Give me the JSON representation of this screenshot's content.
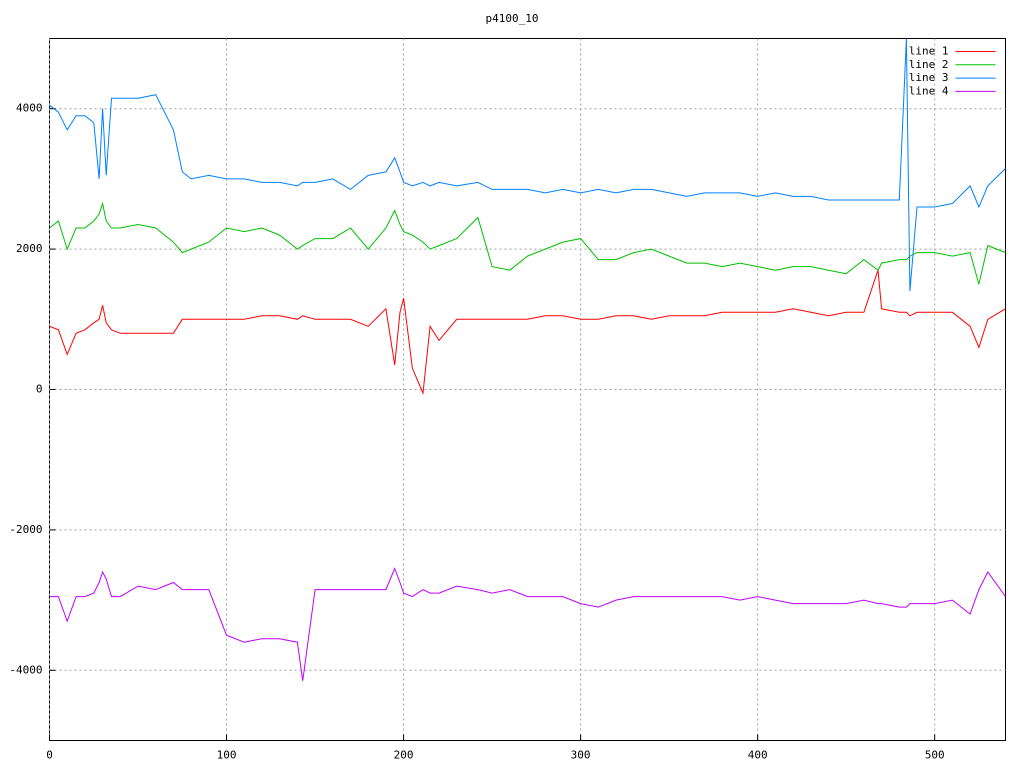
{
  "chart_data": {
    "type": "line",
    "title": "p4100_10",
    "x": [
      0,
      5,
      10,
      15,
      20,
      25,
      28,
      30,
      32,
      35,
      40,
      50,
      60,
      70,
      75,
      80,
      90,
      100,
      110,
      120,
      130,
      140,
      143,
      150,
      160,
      170,
      180,
      190,
      195,
      198,
      200,
      205,
      211,
      215,
      220,
      230,
      242,
      250,
      260,
      270,
      280,
      290,
      300,
      310,
      320,
      330,
      340,
      350,
      360,
      370,
      380,
      390,
      400,
      410,
      420,
      430,
      440,
      450,
      460,
      468,
      470,
      480,
      484,
      486,
      490,
      500,
      510,
      520,
      525,
      530,
      540
    ],
    "series": [
      {
        "name": "line 1",
        "color": "#ff0000",
        "values": [
          900,
          850,
          500,
          800,
          850,
          950,
          1000,
          1200,
          950,
          850,
          800,
          800,
          800,
          800,
          1000,
          1000,
          1000,
          1000,
          1000,
          1050,
          1050,
          1000,
          1050,
          1000,
          1000,
          1000,
          900,
          1150,
          350,
          1100,
          1300,
          300,
          -50,
          900,
          700,
          1000,
          1000,
          1000,
          1000,
          1000,
          1050,
          1050,
          1000,
          1000,
          1050,
          1050,
          1000,
          1050,
          1050,
          1050,
          1100,
          1100,
          1100,
          1100,
          1150,
          1100,
          1050,
          1100,
          1100,
          1700,
          1150,
          1100,
          1100,
          1050,
          1100,
          1100,
          1100,
          900,
          600,
          1000,
          1150
        ]
      },
      {
        "name": "line 2",
        "color": "#00c000",
        "values": [
          2300,
          2400,
          2000,
          2300,
          2300,
          2400,
          2500,
          2650,
          2400,
          2300,
          2300,
          2350,
          2300,
          2100,
          1950,
          2000,
          2100,
          2300,
          2250,
          2300,
          2200,
          2000,
          2050,
          2150,
          2150,
          2300,
          2000,
          2300,
          2550,
          2350,
          2250,
          2200,
          2100,
          2000,
          2050,
          2150,
          2450,
          1750,
          1700,
          1900,
          2000,
          2100,
          2150,
          1850,
          1850,
          1950,
          2000,
          1900,
          1800,
          1800,
          1750,
          1800,
          1750,
          1700,
          1750,
          1750,
          1700,
          1650,
          1850,
          1700,
          1800,
          1850,
          1850,
          1900,
          1950,
          1950,
          1900,
          1950,
          1500,
          2050,
          1950
        ]
      },
      {
        "name": "line 3",
        "color": "#0080ff",
        "values": [
          4050,
          3950,
          3700,
          3900,
          3900,
          3800,
          3000,
          4000,
          3050,
          4150,
          4150,
          4150,
          4200,
          3700,
          3100,
          3000,
          3050,
          3000,
          3000,
          2950,
          2950,
          2900,
          2950,
          2950,
          3000,
          2850,
          3050,
          3100,
          3300,
          3100,
          2950,
          2900,
          2950,
          2900,
          2950,
          2900,
          2950,
          2850,
          2850,
          2850,
          2800,
          2850,
          2800,
          2850,
          2800,
          2850,
          2850,
          2800,
          2750,
          2800,
          2800,
          2800,
          2750,
          2800,
          2750,
          2750,
          2700,
          2700,
          2700,
          2700,
          2700,
          2700,
          5000,
          1400,
          2600,
          2600,
          2650,
          2900,
          2600,
          2900,
          3150
        ]
      },
      {
        "name": "line 4",
        "color": "#c000ff",
        "values": [
          -2950,
          -2950,
          -3300,
          -2950,
          -2950,
          -2900,
          -2750,
          -2600,
          -2700,
          -2950,
          -2950,
          -2800,
          -2850,
          -2750,
          -2850,
          -2850,
          -2850,
          -3500,
          -3600,
          -3550,
          -3550,
          -3600,
          -4150,
          -2850,
          -2850,
          -2850,
          -2850,
          -2850,
          -2550,
          -2750,
          -2900,
          -2950,
          -2850,
          -2900,
          -2900,
          -2800,
          -2850,
          -2900,
          -2850,
          -2950,
          -2950,
          -2950,
          -3050,
          -3100,
          -3000,
          -2950,
          -2950,
          -2950,
          -2950,
          -2950,
          -2950,
          -3000,
          -2950,
          -3000,
          -3050,
          -3050,
          -3050,
          -3050,
          -3000,
          -3050,
          -3050,
          -3100,
          -3100,
          -3050,
          -3050,
          -3050,
          -3000,
          -3200,
          -2850,
          -2600,
          -2950
        ]
      }
    ],
    "xlim": [
      0,
      540
    ],
    "ylim": [
      -5000,
      5000
    ],
    "xticks": [
      0,
      100,
      200,
      300,
      400,
      500
    ],
    "yticks": [
      -4000,
      -2000,
      0,
      2000,
      4000
    ],
    "grid": true,
    "legend": "top-right"
  }
}
